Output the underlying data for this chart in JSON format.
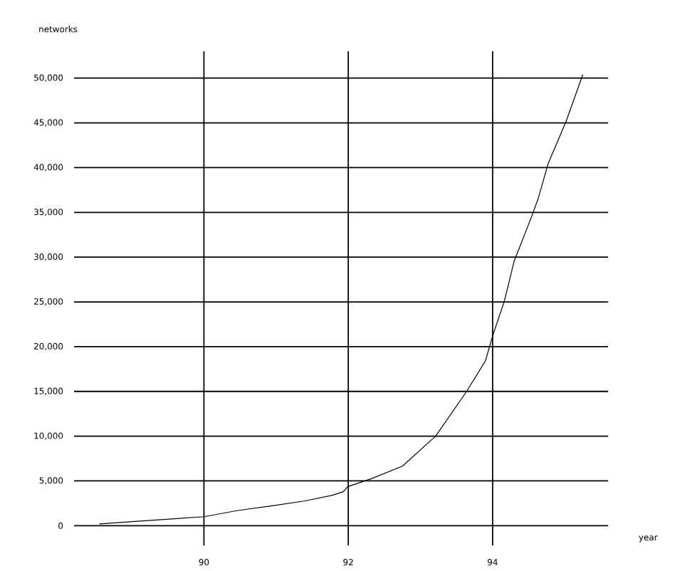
{
  "chart_data": {
    "type": "line",
    "xlabel": "year",
    "ylabel": "networks",
    "x": [
      88.55,
      89.08,
      90.0,
      90.47,
      90.93,
      91.39,
      91.78,
      91.93,
      91.99,
      92.32,
      92.75,
      93.21,
      93.64,
      93.9,
      94.0,
      94.16,
      94.3,
      94.53,
      94.63,
      94.77,
      95.02,
      95.25
    ],
    "series": [
      {
        "color": "#000000",
        "values": [
          200,
          500,
          1000,
          1700,
          2200,
          2750,
          3400,
          3800,
          4350,
          5250,
          6650,
          10000,
          15000,
          18400,
          21200,
          25000,
          29600,
          34300,
          36500,
          40450,
          45200,
          50400
        ]
      }
    ],
    "xlim": [
      88.2,
      95.6
    ],
    "ylim": [
      -2200,
      53000
    ],
    "xticks": [
      90,
      92,
      94
    ],
    "yticks": [
      0,
      {
        "value": 5000,
        "label": "5,000"
      },
      {
        "value": 10000,
        "label": "10,000"
      },
      {
        "value": 15000,
        "label": "15,000"
      },
      {
        "value": 20000,
        "label": "20,000"
      },
      {
        "value": 25000,
        "label": "25,000"
      },
      {
        "value": 30000,
        "label": "30,000"
      },
      {
        "value": 35000,
        "label": "35,000"
      },
      {
        "value": 40000,
        "label": "40,000"
      },
      {
        "value": 45000,
        "label": "45,000"
      },
      {
        "value": 50000,
        "label": "50,000"
      }
    ],
    "grid": true,
    "marker": "none",
    "line_style": "solid"
  }
}
